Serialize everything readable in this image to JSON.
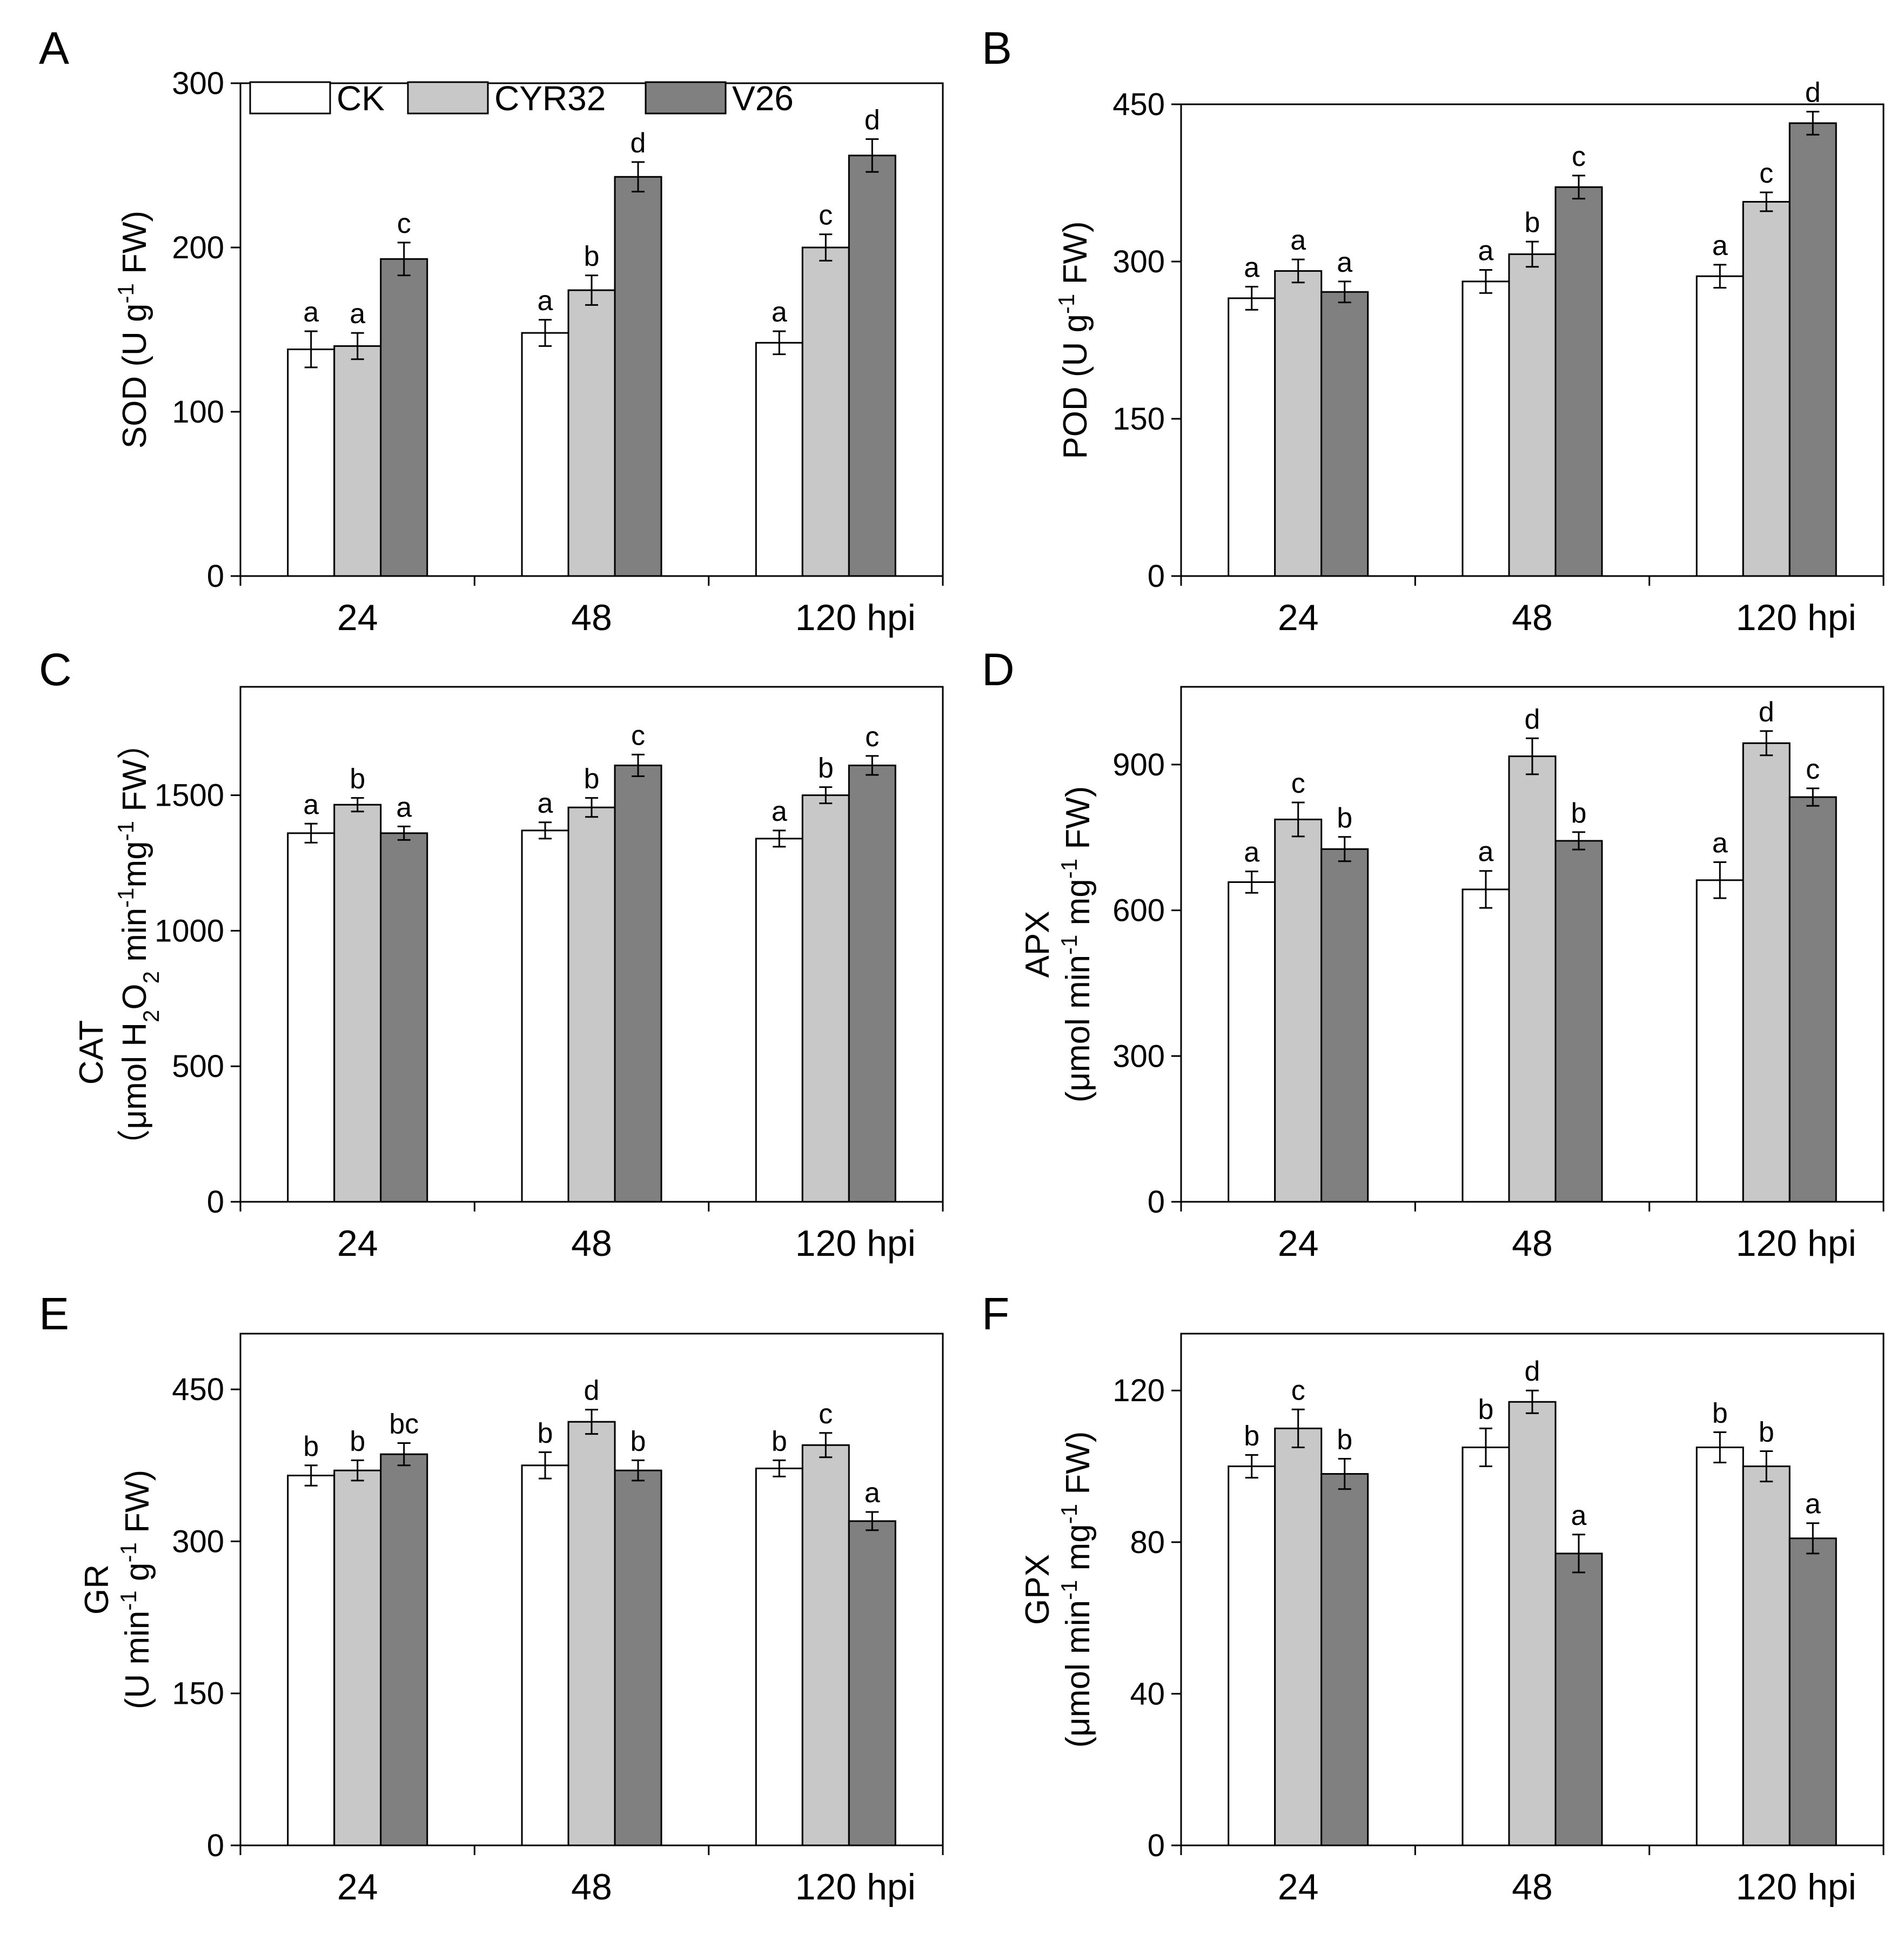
{
  "chart_data": [
    {
      "panel": "A",
      "type": "bar",
      "categories": [
        "24",
        "48",
        "120"
      ],
      "x_unit": "hpi",
      "ylabel": "SOD (U g-1 FW)",
      "ylabel_parts": [
        [
          "SOD  (U g",
          ""
        ],
        [
          "-1",
          "sup"
        ],
        [
          "  FW)",
          ""
        ]
      ],
      "ylim": [
        0,
        300
      ],
      "yticks": [
        0,
        100,
        200,
        300
      ],
      "series": [
        {
          "name": "CK",
          "values": [
            138,
            148,
            142
          ],
          "errors": [
            11,
            8,
            7
          ],
          "letters": [
            "a",
            "a",
            "a"
          ]
        },
        {
          "name": "CYR32",
          "values": [
            140,
            174,
            200
          ],
          "errors": [
            8,
            9,
            8
          ],
          "letters": [
            "a",
            "b",
            "c"
          ]
        },
        {
          "name": "V26",
          "values": [
            193,
            243,
            256
          ],
          "errors": [
            10,
            9,
            10
          ],
          "letters": [
            "c",
            "d",
            "d"
          ]
        }
      ]
    },
    {
      "panel": "B",
      "type": "bar",
      "categories": [
        "24",
        "48",
        "120"
      ],
      "x_unit": "hpi",
      "ylabel": "POD (U g-1 FW)",
      "ylabel_parts": [
        [
          "POD  (U g",
          ""
        ],
        [
          "-1",
          "sup"
        ],
        [
          "  FW)",
          ""
        ]
      ],
      "ylim": [
        0,
        450
      ],
      "yticks": [
        0,
        150,
        300,
        450
      ],
      "series": [
        {
          "name": "CK",
          "values": [
            265,
            281,
            286
          ],
          "errors": [
            11,
            11,
            11
          ],
          "letters": [
            "a",
            "a",
            "a"
          ]
        },
        {
          "name": "CYR32",
          "values": [
            291,
            307,
            357
          ],
          "errors": [
            11,
            12,
            9
          ],
          "letters": [
            "a",
            "b",
            "c"
          ]
        },
        {
          "name": "V26",
          "values": [
            271,
            371,
            432
          ],
          "errors": [
            10,
            11,
            11
          ],
          "letters": [
            "a",
            "c",
            "d"
          ]
        }
      ]
    },
    {
      "panel": "C",
      "type": "bar",
      "categories": [
        "24",
        "48",
        "120"
      ],
      "x_unit": "hpi",
      "ylabel": "CAT (μmol H2O2 min-1 mg-1 FW)",
      "ylabel_parts": [
        [
          "（μmol H",
          ""
        ],
        [
          "2",
          "sub"
        ],
        [
          "O",
          ""
        ],
        [
          "2",
          "sub"
        ],
        [
          " min",
          ""
        ],
        [
          "-1",
          "sup"
        ],
        [
          "mg",
          ""
        ],
        [
          "-1",
          "sup"
        ],
        [
          " FW）",
          ""
        ]
      ],
      "ylim": [
        0,
        1900
      ],
      "yticks": [
        0,
        500,
        1000,
        1500
      ],
      "series": [
        {
          "name": "CK",
          "values": [
            1360,
            1370,
            1340
          ],
          "errors": [
            35,
            30,
            30
          ],
          "letters": [
            "a",
            "a",
            "a"
          ]
        },
        {
          "name": "CYR32",
          "values": [
            1465,
            1455,
            1500
          ],
          "errors": [
            25,
            35,
            30
          ],
          "letters": [
            "b",
            "b",
            "b"
          ]
        },
        {
          "name": "V26",
          "values": [
            1360,
            1610,
            1610
          ],
          "errors": [
            25,
            40,
            35
          ],
          "letters": [
            "a",
            "c",
            "c"
          ]
        }
      ]
    },
    {
      "panel": "D",
      "type": "bar",
      "categories": [
        "24",
        "48",
        "120"
      ],
      "x_unit": "hpi",
      "ylabel": "APX (μmol min-1 mg-1 FW)",
      "ylabel_parts": [
        [
          "(μmol min",
          ""
        ],
        [
          "-1",
          "sup"
        ],
        [
          " mg",
          ""
        ],
        [
          "-1",
          "sup"
        ],
        [
          " FW)",
          ""
        ]
      ],
      "ylabel_main": "APX",
      "ylim": [
        0,
        1060
      ],
      "yticks": [
        0,
        300,
        600,
        900
      ],
      "series": [
        {
          "name": "CK",
          "values": [
            658,
            643,
            662
          ],
          "errors": [
            22,
            38,
            37
          ],
          "letters": [
            "a",
            "a",
            "a"
          ]
        },
        {
          "name": "CYR32",
          "values": [
            787,
            917,
            944
          ],
          "errors": [
            35,
            37,
            25
          ],
          "letters": [
            "c",
            "d",
            "d"
          ]
        },
        {
          "name": "V26",
          "values": [
            726,
            743,
            833
          ],
          "errors": [
            25,
            18,
            18
          ],
          "letters": [
            "b",
            "b",
            "c"
          ]
        }
      ]
    },
    {
      "panel": "E",
      "type": "bar",
      "categories": [
        "24",
        "48",
        "120"
      ],
      "x_unit": "hpi",
      "ylabel": "GR (U min-1 g-1 FW)",
      "ylabel_parts": [
        [
          "(U min",
          ""
        ],
        [
          "-1",
          "sup"
        ],
        [
          " g",
          ""
        ],
        [
          "-1",
          "sup"
        ],
        [
          " FW)",
          ""
        ]
      ],
      "ylabel_main": "GR",
      "ylim": [
        0,
        505
      ],
      "yticks": [
        0,
        150,
        300,
        450
      ],
      "series": [
        {
          "name": "CK",
          "values": [
            365,
            375,
            372
          ],
          "errors": [
            10,
            13,
            8
          ],
          "letters": [
            "b",
            "b",
            "b"
          ]
        },
        {
          "name": "CYR32",
          "values": [
            370,
            418,
            395
          ],
          "errors": [
            10,
            12,
            12
          ],
          "letters": [
            "b",
            "d",
            "c"
          ]
        },
        {
          "name": "V26",
          "values": [
            386,
            370,
            320
          ],
          "errors": [
            11,
            10,
            9
          ],
          "letters": [
            "bc",
            "b",
            "a"
          ]
        }
      ]
    },
    {
      "panel": "F",
      "type": "bar",
      "categories": [
        "24",
        "48",
        "120"
      ],
      "x_unit": "hpi",
      "ylabel": "GPX (μmol min-1 mg-1 FW)",
      "ylabel_parts": [
        [
          "(μmol min",
          ""
        ],
        [
          "-1",
          "sup"
        ],
        [
          " mg",
          ""
        ],
        [
          "-1",
          "sup"
        ],
        [
          " FW)",
          ""
        ]
      ],
      "ylabel_main": "GPX",
      "ylim": [
        0,
        135
      ],
      "yticks": [
        0,
        40,
        80,
        120
      ],
      "series": [
        {
          "name": "CK",
          "values": [
            100,
            105,
            105
          ],
          "errors": [
            3,
            5,
            4
          ],
          "letters": [
            "b",
            "b",
            "b"
          ]
        },
        {
          "name": "CYR32",
          "values": [
            110,
            117,
            100
          ],
          "errors": [
            5,
            3,
            4
          ],
          "letters": [
            "c",
            "d",
            "b"
          ]
        },
        {
          "name": "V26",
          "values": [
            98,
            77,
            81
          ],
          "errors": [
            4,
            5,
            4
          ],
          "letters": [
            "b",
            "a",
            "a"
          ]
        }
      ]
    }
  ],
  "legend": [
    "CK",
    "CYR32",
    "V26"
  ],
  "colors": {
    "CK": "#ffffff",
    "CYR32": "#c8c8c8",
    "V26": "#808080",
    "stroke": "#000000"
  }
}
